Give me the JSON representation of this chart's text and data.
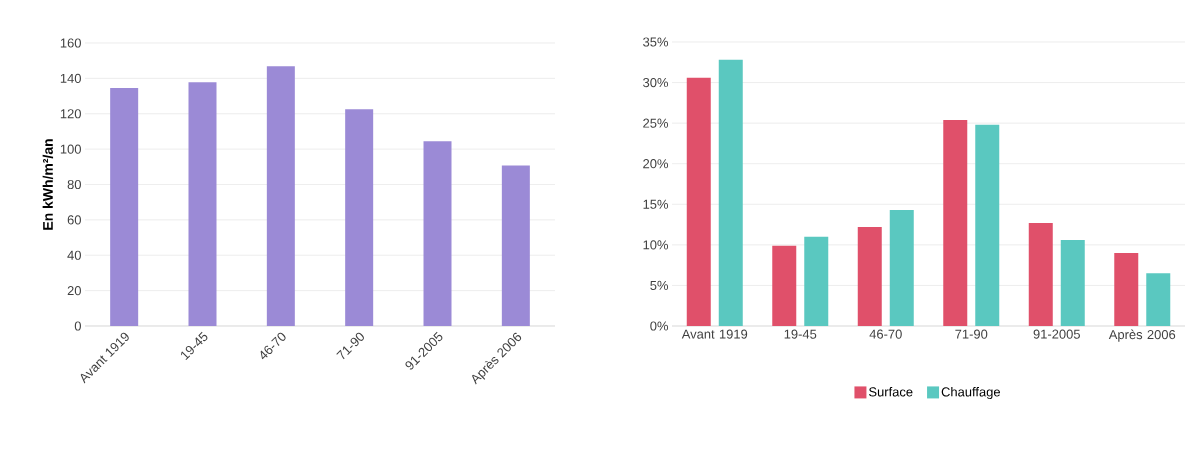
{
  "chart_data": [
    {
      "type": "bar",
      "ylabel": "En kWh/m²/an",
      "categories": [
        "Avant 1919",
        "19-45",
        "46-70",
        "71-90",
        "91-2005",
        "Après 2006"
      ],
      "values": [
        134.5,
        137.8,
        146.9,
        122.5,
        104.5,
        90.8
      ],
      "color": "#9b8ad6",
      "ylim": [
        0,
        160
      ],
      "yticks": [
        0,
        20,
        40,
        60,
        80,
        100,
        120,
        140,
        160
      ],
      "grid": "y"
    },
    {
      "type": "bar",
      "categories": [
        "Avant 1919",
        "19-45",
        "46-70",
        "71-90",
        "91-2005",
        "Après 2006"
      ],
      "series": [
        {
          "name": "Surface",
          "color": "#e0506a",
          "values": [
            30.6,
            9.9,
            12.2,
            25.4,
            12.7,
            9.0
          ]
        },
        {
          "name": "Chauffage",
          "color": "#5ac8c0",
          "values": [
            32.8,
            11.0,
            14.3,
            24.8,
            10.6,
            6.5
          ]
        }
      ],
      "ylim": [
        0,
        35
      ],
      "yticks": [
        {
          "value": 0,
          "label": "0%"
        },
        {
          "value": 5,
          "label": "5%"
        },
        {
          "value": 10,
          "label": "10%"
        },
        {
          "value": 15,
          "label": "15%"
        },
        {
          "value": 20,
          "label": "20%"
        },
        {
          "value": 25,
          "label": "25%"
        },
        {
          "value": 30,
          "label": "30%"
        },
        {
          "value": 35,
          "label": "35%"
        }
      ],
      "grid": "y",
      "legend": "bottom"
    }
  ]
}
